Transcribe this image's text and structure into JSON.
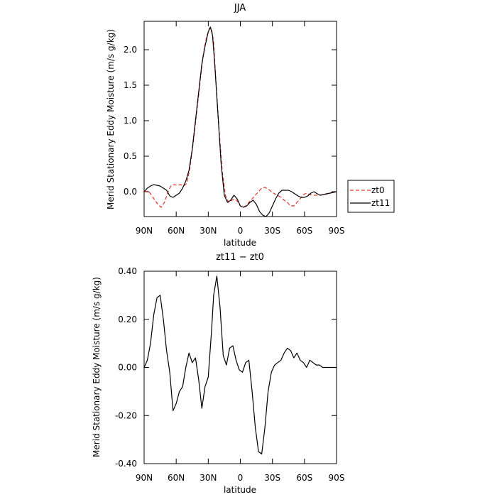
{
  "chart_data": [
    {
      "type": "line",
      "title": "JJA",
      "xlabel": "latitude",
      "ylabel": "Merid Stationary Eddy Moisture (m/s g/kg)",
      "xlim": [
        90,
        -90
      ],
      "ylim": [
        -0.35,
        2.4
      ],
      "xticks": [
        90,
        60,
        30,
        0,
        -30,
        -60,
        -90
      ],
      "xtick_labels": [
        "90N",
        "60N",
        "30N",
        "0",
        "30S",
        "60S",
        "90S"
      ],
      "yticks": [
        0,
        0.5,
        1.0,
        1.5,
        2.0
      ],
      "ytick_labels": [
        "0.0",
        "0.5",
        "1.0",
        "1.5",
        "2.0"
      ],
      "legend_position": "right",
      "series": [
        {
          "name": "zt0",
          "color": "#e8312a",
          "dash": "dashed",
          "x": [
            90,
            86,
            83,
            80,
            77,
            74,
            71,
            68,
            65,
            62,
            59,
            56,
            53,
            50,
            47,
            44,
            41,
            38,
            35,
            32,
            29,
            27,
            25,
            23,
            20,
            17,
            14,
            11,
            8,
            5,
            2,
            0,
            -2,
            -5,
            -8,
            -11,
            -14,
            -17,
            -20,
            -23,
            -26,
            -29,
            -32,
            -35,
            -38,
            -41,
            -44,
            -47,
            -50,
            -53,
            -56,
            -59,
            -62,
            -65,
            -68,
            -71,
            -74,
            -77,
            -80,
            -83,
            -86,
            -90
          ],
          "y": [
            0.0,
            0.01,
            -0.05,
            -0.12,
            -0.18,
            -0.22,
            -0.15,
            -0.02,
            0.08,
            0.1,
            0.09,
            0.1,
            0.08,
            0.12,
            0.35,
            0.7,
            1.1,
            1.5,
            1.9,
            2.15,
            2.3,
            2.3,
            2.1,
            1.6,
            0.9,
            0.3,
            -0.05,
            -0.15,
            -0.12,
            -0.1,
            -0.15,
            -0.2,
            -0.22,
            -0.2,
            -0.15,
            -0.1,
            -0.05,
            0.0,
            0.05,
            0.06,
            0.04,
            0.0,
            -0.03,
            -0.05,
            -0.08,
            -0.12,
            -0.15,
            -0.2,
            -0.2,
            -0.15,
            -0.1,
            -0.04,
            -0.02,
            -0.04,
            -0.05,
            -0.05,
            -0.05,
            -0.04,
            -0.03,
            -0.02,
            -0.01,
            0.0
          ]
        },
        {
          "name": "zt11",
          "color": "#000000",
          "dash": "solid",
          "x": [
            90,
            87,
            84,
            81,
            78,
            75,
            72,
            69,
            66,
            63,
            60,
            57,
            54,
            51,
            48,
            45,
            42,
            39,
            36,
            33,
            30,
            28,
            26,
            24,
            21,
            18,
            15,
            12,
            9,
            6,
            3,
            0,
            -3,
            -6,
            -9,
            -12,
            -15,
            -18,
            -21,
            -24,
            -27,
            -30,
            -33,
            -36,
            -39,
            -42,
            -45,
            -48,
            -51,
            -54,
            -57,
            -60,
            -63,
            -66,
            -69,
            -72,
            -75,
            -78,
            -81,
            -84,
            -87,
            -90
          ],
          "y": [
            0.0,
            0.05,
            0.08,
            0.1,
            0.09,
            0.08,
            0.05,
            0.02,
            -0.06,
            -0.08,
            -0.05,
            -0.02,
            0.05,
            0.15,
            0.3,
            0.6,
            1.0,
            1.4,
            1.8,
            2.05,
            2.25,
            2.32,
            2.2,
            1.8,
            1.1,
            0.4,
            -0.05,
            -0.15,
            -0.12,
            -0.05,
            -0.1,
            -0.2,
            -0.22,
            -0.2,
            -0.15,
            -0.12,
            -0.18,
            -0.28,
            -0.33,
            -0.35,
            -0.3,
            -0.2,
            -0.1,
            -0.02,
            0.02,
            0.02,
            0.02,
            0.0,
            -0.03,
            -0.06,
            -0.08,
            -0.08,
            -0.06,
            -0.02,
            0.0,
            -0.03,
            -0.05,
            -0.04,
            -0.03,
            -0.02,
            -0.01,
            0.0
          ]
        }
      ]
    },
    {
      "type": "line",
      "title": "zt11 − zt0",
      "xlabel": "latitude",
      "ylabel": "Merid Stationary Eddy Moisture (m/s g/kg)",
      "xlim": [
        90,
        -90
      ],
      "ylim": [
        -0.4,
        0.4
      ],
      "xticks": [
        90,
        60,
        30,
        0,
        -30,
        -60,
        -90
      ],
      "xtick_labels": [
        "90N",
        "60N",
        "30N",
        "0",
        "30S",
        "60S",
        "90S"
      ],
      "yticks": [
        -0.4,
        -0.2,
        0,
        0.2,
        0.4
      ],
      "ytick_labels": [
        "-0.40",
        "-0.20",
        "0.00",
        "0.20",
        "0.40"
      ],
      "series": [
        {
          "color": "#000000",
          "dash": "solid",
          "x": [
            90,
            87,
            84,
            81,
            78,
            75,
            72,
            69,
            66,
            63,
            60,
            57,
            54,
            51,
            48,
            45,
            42,
            39,
            36,
            33,
            30,
            27,
            25,
            22,
            19,
            16,
            13,
            10,
            7,
            4,
            1,
            -2,
            -5,
            -8,
            -11,
            -14,
            -17,
            -20,
            -23,
            -26,
            -29,
            -32,
            -35,
            -38,
            -41,
            -44,
            -47,
            -50,
            -53,
            -56,
            -59,
            -62,
            -65,
            -68,
            -71,
            -74,
            -77,
            -80,
            -83,
            -86,
            -90
          ],
          "y": [
            0.0,
            0.03,
            0.1,
            0.22,
            0.29,
            0.3,
            0.2,
            0.07,
            -0.02,
            -0.18,
            -0.15,
            -0.1,
            -0.08,
            0.0,
            0.06,
            0.02,
            0.04,
            -0.05,
            -0.17,
            -0.08,
            -0.04,
            0.15,
            0.3,
            0.38,
            0.25,
            0.05,
            0.01,
            0.08,
            0.09,
            0.03,
            -0.01,
            -0.02,
            0.02,
            0.03,
            -0.1,
            -0.25,
            -0.35,
            -0.36,
            -0.25,
            -0.1,
            -0.02,
            0.01,
            0.02,
            0.03,
            0.06,
            0.08,
            0.07,
            0.04,
            0.06,
            0.03,
            0.02,
            0.0,
            0.03,
            0.02,
            0.01,
            0.01,
            0.0,
            0.0,
            0.0,
            0.0,
            0.0
          ]
        }
      ]
    }
  ]
}
